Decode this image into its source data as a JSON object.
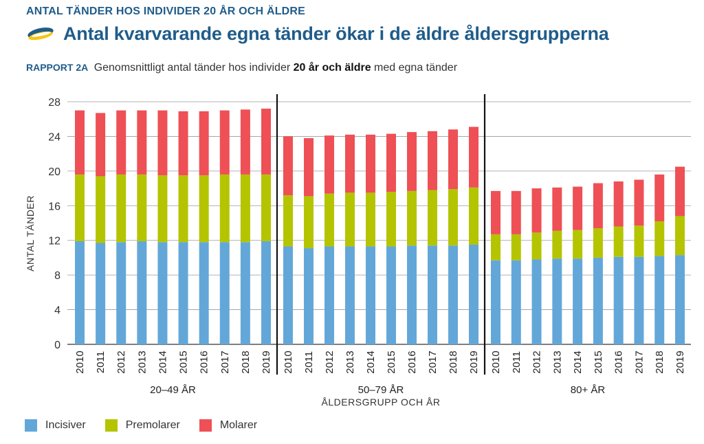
{
  "header": {
    "supertitle": "ANTAL TÄNDER HOS INDIVIDER 20 ÅR OCH ÄLDRE",
    "title": "Antal kvarvarande egna tänder ökar i de äldre åldersgrupperna",
    "report_tag": "RAPPORT 2A",
    "subtitle_pre": "Genomsnittligt antal tänder hos individer",
    "subtitle_bold": "20 år och äldre",
    "subtitle_post": "med egna tänder"
  },
  "colors": {
    "incisiver": "#63a7d9",
    "premolarer": "#b4c400",
    "molarer": "#ee5055",
    "title": "#1f5c8a",
    "grid": "#999999"
  },
  "chart_data": {
    "type": "bar",
    "stacked": true,
    "ylabel": "ANTAL TÄNDER",
    "xlabel": "ÅLDERSGRUPP OCH ÅR",
    "ylim": [
      0,
      28
    ],
    "yticks": [
      0,
      4,
      8,
      12,
      16,
      20,
      24,
      28
    ],
    "grid": true,
    "legend_position": "bottom-left",
    "years": [
      "2010",
      "2011",
      "2012",
      "2013",
      "2014",
      "2015",
      "2016",
      "2017",
      "2018",
      "2019"
    ],
    "groups": [
      {
        "label": "20–49 ÅR",
        "series": [
          {
            "name": "Incisiver",
            "values": [
              11.9,
              11.7,
              11.8,
              11.9,
              11.8,
              11.8,
              11.8,
              11.8,
              11.8,
              11.9
            ]
          },
          {
            "name": "Premolarer",
            "values": [
              7.7,
              7.7,
              7.8,
              7.7,
              7.7,
              7.7,
              7.7,
              7.8,
              7.8,
              7.7
            ]
          },
          {
            "name": "Molarer",
            "values": [
              7.4,
              7.3,
              7.4,
              7.4,
              7.5,
              7.4,
              7.4,
              7.4,
              7.5,
              7.6
            ]
          }
        ]
      },
      {
        "label": "50–79 ÅR",
        "series": [
          {
            "name": "Incisiver",
            "values": [
              11.3,
              11.1,
              11.3,
              11.3,
              11.3,
              11.3,
              11.4,
              11.4,
              11.4,
              11.5
            ]
          },
          {
            "name": "Premolarer",
            "values": [
              5.9,
              6.0,
              6.1,
              6.2,
              6.2,
              6.3,
              6.3,
              6.4,
              6.5,
              6.6
            ]
          },
          {
            "name": "Molarer",
            "values": [
              6.8,
              6.7,
              6.7,
              6.7,
              6.7,
              6.7,
              6.8,
              6.8,
              6.9,
              7.0
            ]
          }
        ]
      },
      {
        "label": "80+ ÅR",
        "series": [
          {
            "name": "Incisiver",
            "values": [
              9.7,
              9.7,
              9.8,
              9.9,
              9.9,
              10.0,
              10.1,
              10.1,
              10.2,
              10.3
            ]
          },
          {
            "name": "Premolarer",
            "values": [
              3.0,
              3.0,
              3.1,
              3.2,
              3.3,
              3.4,
              3.5,
              3.6,
              4.0,
              4.5
            ]
          },
          {
            "name": "Molarer",
            "values": [
              5.0,
              5.0,
              5.1,
              5.0,
              5.0,
              5.2,
              5.2,
              5.3,
              5.4,
              5.7
            ]
          }
        ]
      }
    ]
  }
}
